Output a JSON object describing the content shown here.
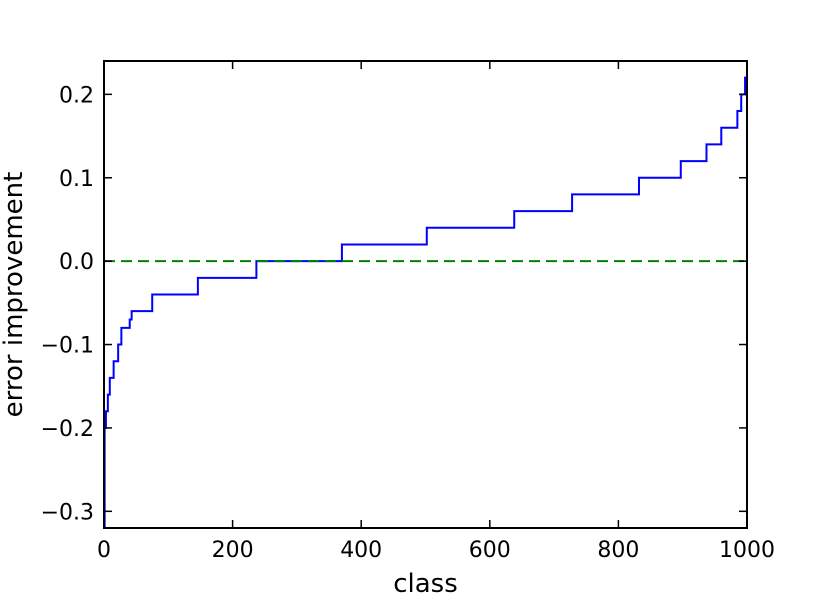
{
  "chart_data": {
    "type": "line",
    "title": "",
    "xlabel": "class",
    "ylabel": "error improvement",
    "xlim": [
      0,
      1000
    ],
    "ylim": [
      -0.32,
      0.24
    ],
    "x_ticks": [
      0,
      200,
      400,
      600,
      800,
      1000
    ],
    "y_ticks": [
      -0.3,
      -0.2,
      -0.1,
      0.0,
      0.1,
      0.2
    ],
    "x_tick_labels": [
      "0",
      "200",
      "400",
      "600",
      "800",
      "1000"
    ],
    "y_tick_labels": [
      "−0.3",
      "−0.2",
      "−0.1",
      "0.0",
      "0.1",
      "0.2"
    ],
    "grid": false,
    "legend": "none",
    "colors": {
      "series": "#0000ff",
      "reference": "#008000",
      "axes": "#000000"
    },
    "series": [
      {
        "style": "solid",
        "color": "#0000ff",
        "x": [
          0,
          1,
          1,
          3,
          3,
          6,
          6,
          9,
          9,
          15,
          15,
          22,
          22,
          27,
          27,
          40,
          40,
          43,
          43,
          44,
          44,
          75,
          75,
          146,
          146,
          237,
          237,
          370,
          370,
          502,
          502,
          638,
          638,
          728,
          728,
          832,
          832,
          897,
          897,
          937,
          937,
          960,
          960,
          979,
          979,
          985,
          985,
          991,
          991,
          995,
          995,
          997,
          997,
          1000
        ],
        "y": [
          -0.32,
          -0.32,
          -0.2,
          -0.2,
          -0.18,
          -0.18,
          -0.16,
          -0.16,
          -0.14,
          -0.14,
          -0.12,
          -0.12,
          -0.1,
          -0.1,
          -0.08,
          -0.08,
          -0.07,
          -0.07,
          -0.06,
          -0.06,
          -0.06,
          -0.06,
          -0.04,
          -0.04,
          -0.02,
          -0.02,
          0.0,
          0.0,
          0.02,
          0.02,
          0.04,
          0.04,
          0.06,
          0.06,
          0.08,
          0.08,
          0.1,
          0.1,
          0.12,
          0.12,
          0.14,
          0.14,
          0.16,
          0.16,
          0.16,
          0.16,
          0.18,
          0.18,
          0.2,
          0.2,
          0.2,
          0.2,
          0.22,
          0.22
        ]
      },
      {
        "style": "dashed",
        "color": "#008000",
        "x": [
          0,
          1000
        ],
        "y": [
          0.0,
          0.0
        ]
      }
    ]
  }
}
